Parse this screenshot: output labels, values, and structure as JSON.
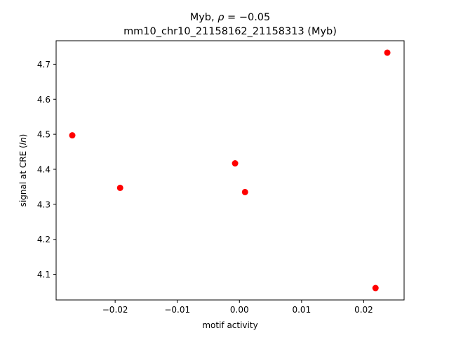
{
  "chart_data": {
    "type": "scatter",
    "title_line1": "Myb, ",
    "title_rho": "ρ",
    "title_eq": " = −0.05",
    "title_line2": "mm10_chr10_21158162_21158313 (Myb)",
    "xlabel": "motif activity",
    "ylabel_prefix": "signal at CRE (",
    "ylabel_italic": "ln",
    "ylabel_suffix": ")",
    "xlim": [
      -0.0295,
      0.0265
    ],
    "ylim": [
      4.027,
      4.767
    ],
    "xticks": [
      -0.02,
      -0.01,
      0.0,
      0.01,
      0.02
    ],
    "xtick_labels": [
      "−0.02",
      "−0.01",
      "0.00",
      "0.01",
      "0.02"
    ],
    "yticks": [
      4.1,
      4.2,
      4.3,
      4.4,
      4.5,
      4.6,
      4.7
    ],
    "ytick_labels": [
      "4.1",
      "4.2",
      "4.3",
      "4.4",
      "4.5",
      "4.6",
      "4.7"
    ],
    "grid": false,
    "marker_color": "#ff0000",
    "points": [
      {
        "x": -0.0269,
        "y": 4.497
      },
      {
        "x": -0.0192,
        "y": 4.347
      },
      {
        "x": -0.0007,
        "y": 4.417
      },
      {
        "x": 0.0009,
        "y": 4.335
      },
      {
        "x": 0.0219,
        "y": 4.061
      },
      {
        "x": 0.0238,
        "y": 4.733
      }
    ]
  }
}
